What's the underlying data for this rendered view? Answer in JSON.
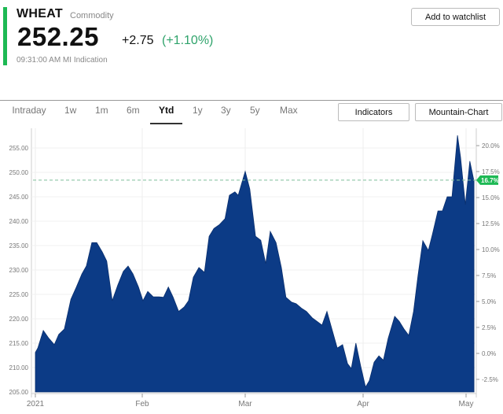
{
  "header": {
    "symbol": "WHEAT",
    "type": "Commodity",
    "price": "252.25",
    "change": "+2.75",
    "change_pct": "(+1.10%)",
    "timestamp": "09:31:00 AM MI Indication",
    "watchlist_button": "Add to watchlist"
  },
  "tabs": [
    "Intraday",
    "1w",
    "1m",
    "6m",
    "Ytd",
    "1y",
    "3y",
    "5y",
    "Max"
  ],
  "active_tab": "Ytd",
  "buttons": {
    "indicators": "Indicators",
    "chart_type": "Mountain-Chart"
  },
  "colors": {
    "accent": "#1db954",
    "area": "#0c3b86",
    "positive": "#2fa36b",
    "badge": "#1db954"
  },
  "chart_data": {
    "type": "area",
    "x_unit": "day of year 2021",
    "xticks": [
      {
        "label": "2021",
        "day": 0
      },
      {
        "label": "Feb",
        "day": 31
      },
      {
        "label": "Mar",
        "day": 59
      },
      {
        "label": "Apr",
        "day": 90
      },
      {
        "label": "May",
        "day": 120
      }
    ],
    "yticks_left": [
      "255.00",
      "250.00",
      "245.00",
      "240.00",
      "235.00",
      "230.00",
      "225.00",
      "220.00",
      "215.00",
      "210.00",
      "205.00"
    ],
    "ylim": [
      205,
      255
    ],
    "yticks_right": [
      "20.0%",
      "17.5%",
      "15.0%",
      "12.5%",
      "10.0%",
      "7.5%",
      "5.0%",
      "2.5%",
      "0.0%",
      "-2.5%"
    ],
    "right_range_pct": [
      -2.5,
      20
    ],
    "reference_price": 248.4,
    "reference_badge": "16.7%",
    "points": [
      [
        0,
        213.1
      ],
      [
        0.7,
        214.0
      ],
      [
        2.3,
        217.6
      ],
      [
        3.9,
        216.0
      ],
      [
        5.5,
        214.7
      ],
      [
        6.8,
        216.8
      ],
      [
        8.4,
        217.9
      ],
      [
        10.3,
        224.0
      ],
      [
        11.9,
        226.5
      ],
      [
        13.5,
        229.2
      ],
      [
        14.8,
        230.8
      ],
      [
        16.4,
        235.6
      ],
      [
        17.8,
        235.6
      ],
      [
        19.4,
        233.7
      ],
      [
        20.7,
        231.8
      ],
      [
        22.3,
        223.7
      ],
      [
        23.9,
        226.9
      ],
      [
        25.5,
        229.7
      ],
      [
        26.9,
        230.8
      ],
      [
        28.3,
        229.2
      ],
      [
        29.9,
        226.5
      ],
      [
        31.2,
        223.7
      ],
      [
        32.5,
        225.6
      ],
      [
        34.0,
        224.5
      ],
      [
        35.5,
        224.5
      ],
      [
        36.8,
        224.4
      ],
      [
        38.1,
        226.5
      ],
      [
        39.4,
        224.4
      ],
      [
        40.9,
        221.5
      ],
      [
        42.4,
        222.4
      ],
      [
        43.6,
        223.7
      ],
      [
        44.9,
        228.5
      ],
      [
        46.4,
        230.5
      ],
      [
        47.9,
        229.5
      ],
      [
        49.2,
        236.9
      ],
      [
        50.5,
        238.5
      ],
      [
        52.0,
        239.3
      ],
      [
        53.5,
        240.5
      ],
      [
        54.7,
        245.3
      ],
      [
        56.2,
        246.0
      ],
      [
        57.1,
        245.3
      ],
      [
        58.1,
        247.9
      ],
      [
        59.0,
        250.2
      ],
      [
        60.2,
        246.6
      ],
      [
        61.7,
        236.9
      ],
      [
        63.1,
        236.1
      ],
      [
        64.4,
        231.3
      ],
      [
        65.6,
        237.9
      ],
      [
        67.1,
        235.6
      ],
      [
        68.5,
        230.5
      ],
      [
        69.7,
        224.4
      ],
      [
        71.2,
        223.4
      ],
      [
        72.4,
        223.1
      ],
      [
        73.9,
        222.1
      ],
      [
        75.1,
        221.5
      ],
      [
        76.6,
        220.2
      ],
      [
        77.8,
        219.5
      ],
      [
        79.2,
        218.7
      ],
      [
        80.5,
        221.5
      ],
      [
        81.9,
        217.6
      ],
      [
        83.2,
        214.0
      ],
      [
        84.6,
        214.7
      ],
      [
        85.9,
        210.8
      ],
      [
        86.9,
        209.8
      ],
      [
        88.1,
        215.0
      ],
      [
        89.4,
        210.2
      ],
      [
        90.7,
        206.0
      ],
      [
        91.8,
        207.3
      ],
      [
        93.2,
        211.1
      ],
      [
        94.6,
        212.4
      ],
      [
        95.9,
        211.5
      ],
      [
        97.3,
        216.0
      ],
      [
        99.2,
        220.5
      ],
      [
        100.5,
        219.5
      ],
      [
        101.9,
        217.9
      ],
      [
        103.3,
        216.6
      ],
      [
        104.7,
        221.5
      ],
      [
        106.0,
        228.9
      ],
      [
        107.4,
        236.0
      ],
      [
        109.0,
        234.0
      ],
      [
        110.2,
        237.3
      ],
      [
        111.8,
        242.1
      ],
      [
        113.1,
        242.1
      ],
      [
        114.5,
        245.0
      ],
      [
        115.9,
        245.0
      ],
      [
        117.5,
        257.6
      ],
      [
        118.4,
        253.1
      ],
      [
        119.8,
        243.4
      ],
      [
        121.1,
        252.3
      ],
      [
        122.3,
        248.2
      ]
    ]
  }
}
